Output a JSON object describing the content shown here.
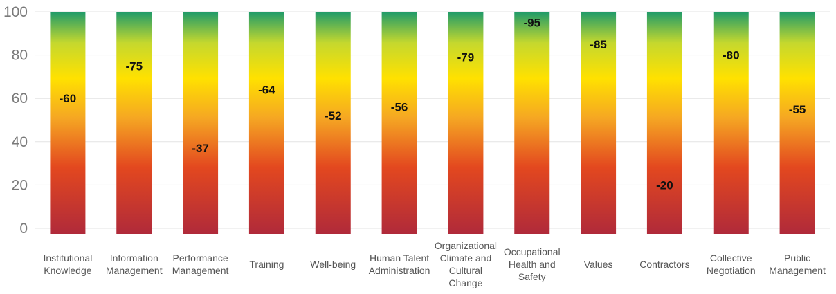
{
  "chart_data": {
    "type": "bar",
    "title": "",
    "xlabel": "",
    "ylabel": "",
    "ylim": [
      0,
      100
    ],
    "yticks": [
      0,
      20,
      40,
      60,
      80,
      100
    ],
    "grid": true,
    "bar_fill": "gradient",
    "gradient_colors": [
      "#b02a3a",
      "#e3481f",
      "#f5a623",
      "#ffe100",
      "#c5d82e",
      "#1f9a6a"
    ],
    "categories": [
      [
        "Institutional",
        "Knowledge"
      ],
      [
        "Information",
        "Management"
      ],
      [
        "Performance",
        "Management"
      ],
      [
        "Training"
      ],
      [
        "Well-being"
      ],
      [
        "Human Talent",
        "Administration"
      ],
      [
        "Organizational",
        "Climate and",
        "Cultural",
        "Change"
      ],
      [
        "Occupational",
        "Health and",
        "Safety"
      ],
      [
        "Values"
      ],
      [
        "Contractors"
      ],
      [
        "Collective",
        "Negotiation"
      ],
      [
        "Public",
        "Management"
      ]
    ],
    "values": [
      60,
      75,
      37,
      64,
      52,
      56,
      79,
      95,
      85,
      20,
      80,
      55
    ],
    "value_labels": [
      "-60",
      "-75",
      "-37",
      "-64",
      "-52",
      "-56",
      "-79",
      "-95",
      "-85",
      "-20",
      "-80",
      "-55"
    ]
  }
}
